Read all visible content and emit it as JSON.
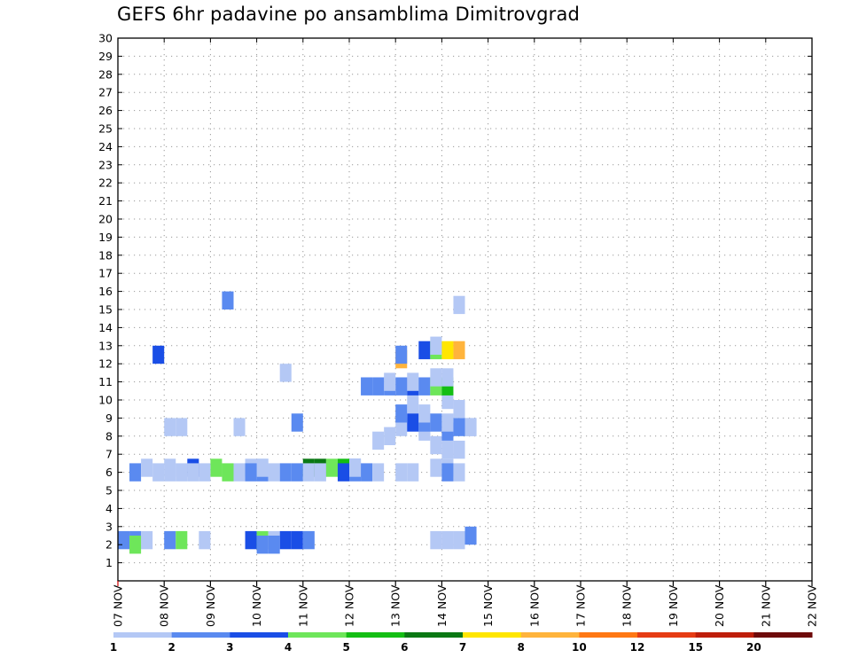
{
  "chart_data": {
    "type": "heatmap",
    "title": "GEFS 6hr padavine po ansamblima Dimitrovgrad",
    "xlabel": "",
    "ylabel": "",
    "x_ticks": [
      "07 NOV",
      "08 NOV",
      "09 NOV",
      "10 NOV",
      "11 NOV",
      "12 NOV",
      "13 NOV",
      "14 NOV",
      "15 NOV",
      "16 NOV",
      "17 NOV",
      "18 NOV",
      "19 NOV",
      "20 NOV",
      "21 NOV",
      "22 NOV"
    ],
    "x_range_days": [
      0,
      15
    ],
    "y_ticks": [
      "1",
      "2",
      "3",
      "4",
      "5",
      "6",
      "7",
      "8",
      "9",
      "10",
      "11",
      "12",
      "13",
      "14",
      "15",
      "16",
      "17",
      "18",
      "19",
      "20",
      "21",
      "22",
      "23",
      "24",
      "25",
      "26",
      "27",
      "28",
      "29",
      "30"
    ],
    "y_range": [
      0,
      30
    ],
    "grid": true,
    "colorbar": {
      "labels": [
        "1",
        "2",
        "3",
        "4",
        "5",
        "6",
        "7",
        "8",
        "10",
        "12",
        "15",
        "20"
      ],
      "colors": [
        "#b4c8f5",
        "#5a8af0",
        "#1a4ee6",
        "#6ee65a",
        "#14be14",
        "#0a7814",
        "#ffe600",
        "#ffb43c",
        "#ff7814",
        "#e63c14",
        "#be1e0a",
        "#6e0a0a"
      ]
    },
    "cells": [
      [
        0,
        2.25,
        2
      ],
      [
        1,
        2.25,
        2
      ],
      [
        2,
        2.25,
        1
      ],
      [
        4,
        2.25,
        2
      ],
      [
        5,
        2.25,
        4
      ],
      [
        7,
        2.25,
        1
      ],
      [
        11,
        2.25,
        3
      ],
      [
        12,
        2.25,
        4
      ],
      [
        13,
        2.25,
        1
      ],
      [
        14,
        2.25,
        3
      ],
      [
        15,
        2.25,
        3
      ],
      [
        16,
        2.25,
        2
      ],
      [
        27,
        2.25,
        1
      ],
      [
        28,
        2.25,
        1
      ],
      [
        29,
        2.25,
        1
      ],
      [
        1,
        2.0,
        4
      ],
      [
        12,
        2.0,
        2
      ],
      [
        13,
        2.0,
        2
      ],
      [
        30,
        2.5,
        2
      ],
      [
        15,
        8.75,
        2
      ],
      [
        4,
        8.5,
        1
      ],
      [
        5,
        8.5,
        1
      ],
      [
        10,
        8.5,
        1
      ],
      [
        26,
        8.5,
        1
      ],
      [
        29,
        8.5,
        2
      ],
      [
        30,
        8.5,
        1
      ],
      [
        25,
        9.75,
        1
      ],
      [
        29,
        15.25,
        1
      ],
      [
        9,
        15.5,
        2
      ],
      [
        28,
        7.25,
        1
      ],
      [
        29,
        7.25,
        1
      ],
      [
        27,
        7.5,
        1
      ],
      [
        22,
        7.75,
        1
      ],
      [
        27,
        6.25,
        1
      ],
      [
        28,
        6.25,
        1
      ],
      [
        11,
        6.25,
        1
      ],
      [
        12,
        6.25,
        1
      ],
      [
        6,
        6.25,
        3
      ],
      [
        8,
        6.25,
        4
      ],
      [
        16,
        6.25,
        6
      ],
      [
        17,
        6.25,
        6
      ],
      [
        18,
        6.25,
        4
      ],
      [
        19,
        6.25,
        5
      ],
      [
        20,
        6.25,
        3
      ],
      [
        1,
        6.0,
        2
      ],
      [
        3,
        6.0,
        1
      ],
      [
        4,
        6.0,
        1
      ],
      [
        5,
        6.0,
        1
      ],
      [
        6,
        6.0,
        1
      ],
      [
        7,
        6.0,
        1
      ],
      [
        9,
        6.0,
        4
      ],
      [
        10,
        6.0,
        1
      ],
      [
        11,
        6.0,
        2
      ],
      [
        12,
        6.0,
        2
      ],
      [
        13,
        6.0,
        1
      ],
      [
        14,
        6.0,
        2
      ],
      [
        15,
        6.0,
        2
      ],
      [
        16,
        6.0,
        1
      ],
      [
        17,
        6.0,
        1
      ],
      [
        19,
        6.0,
        3
      ],
      [
        20,
        6.0,
        2
      ],
      [
        21,
        6.0,
        2
      ],
      [
        22,
        6.0,
        1
      ],
      [
        24,
        6.0,
        1
      ],
      [
        25,
        6.0,
        1
      ],
      [
        28,
        6.0,
        2
      ],
      [
        29,
        6.0,
        1
      ],
      [
        2,
        6.25,
        1
      ],
      [
        4,
        6.25,
        1
      ],
      [
        12,
        6.25,
        1
      ],
      [
        20,
        6.25,
        1
      ],
      [
        23,
        8.0,
        1
      ],
      [
        26,
        8.25,
        1
      ],
      [
        28,
        8.25,
        2
      ],
      [
        24,
        8.5,
        1
      ],
      [
        30,
        8.5,
        1
      ],
      [
        25,
        8.75,
        3
      ],
      [
        26,
        8.75,
        2
      ],
      [
        27,
        8.75,
        2
      ],
      [
        28,
        8.75,
        1
      ],
      [
        24,
        9.25,
        2
      ],
      [
        26,
        9.25,
        1
      ],
      [
        29,
        9.5,
        1
      ],
      [
        28,
        10.0,
        1
      ],
      [
        21,
        10.75,
        2
      ],
      [
        22,
        10.75,
        2
      ],
      [
        23,
        10.75,
        2
      ],
      [
        24,
        10.75,
        2
      ],
      [
        25,
        10.75,
        3
      ],
      [
        26,
        10.75,
        2
      ],
      [
        27,
        10.75,
        4
      ],
      [
        28,
        10.75,
        5
      ],
      [
        23,
        11.0,
        1
      ],
      [
        25,
        11.0,
        1
      ],
      [
        27,
        11.25,
        1
      ],
      [
        28,
        11.25,
        1
      ],
      [
        14,
        11.5,
        1
      ],
      [
        3,
        12.5,
        3
      ],
      [
        24,
        12.25,
        8
      ],
      [
        24,
        12.5,
        2
      ],
      [
        26,
        12.75,
        3
      ],
      [
        27,
        12.75,
        4
      ],
      [
        28,
        12.75,
        7
      ],
      [
        29,
        12.75,
        8
      ],
      [
        27,
        13.0,
        1
      ]
    ],
    "note": ""
  },
  "colors": {
    "background": "#ffffff",
    "axis": "#000000",
    "grid": "#9a9a9a",
    "tick_red": "#d00000"
  }
}
